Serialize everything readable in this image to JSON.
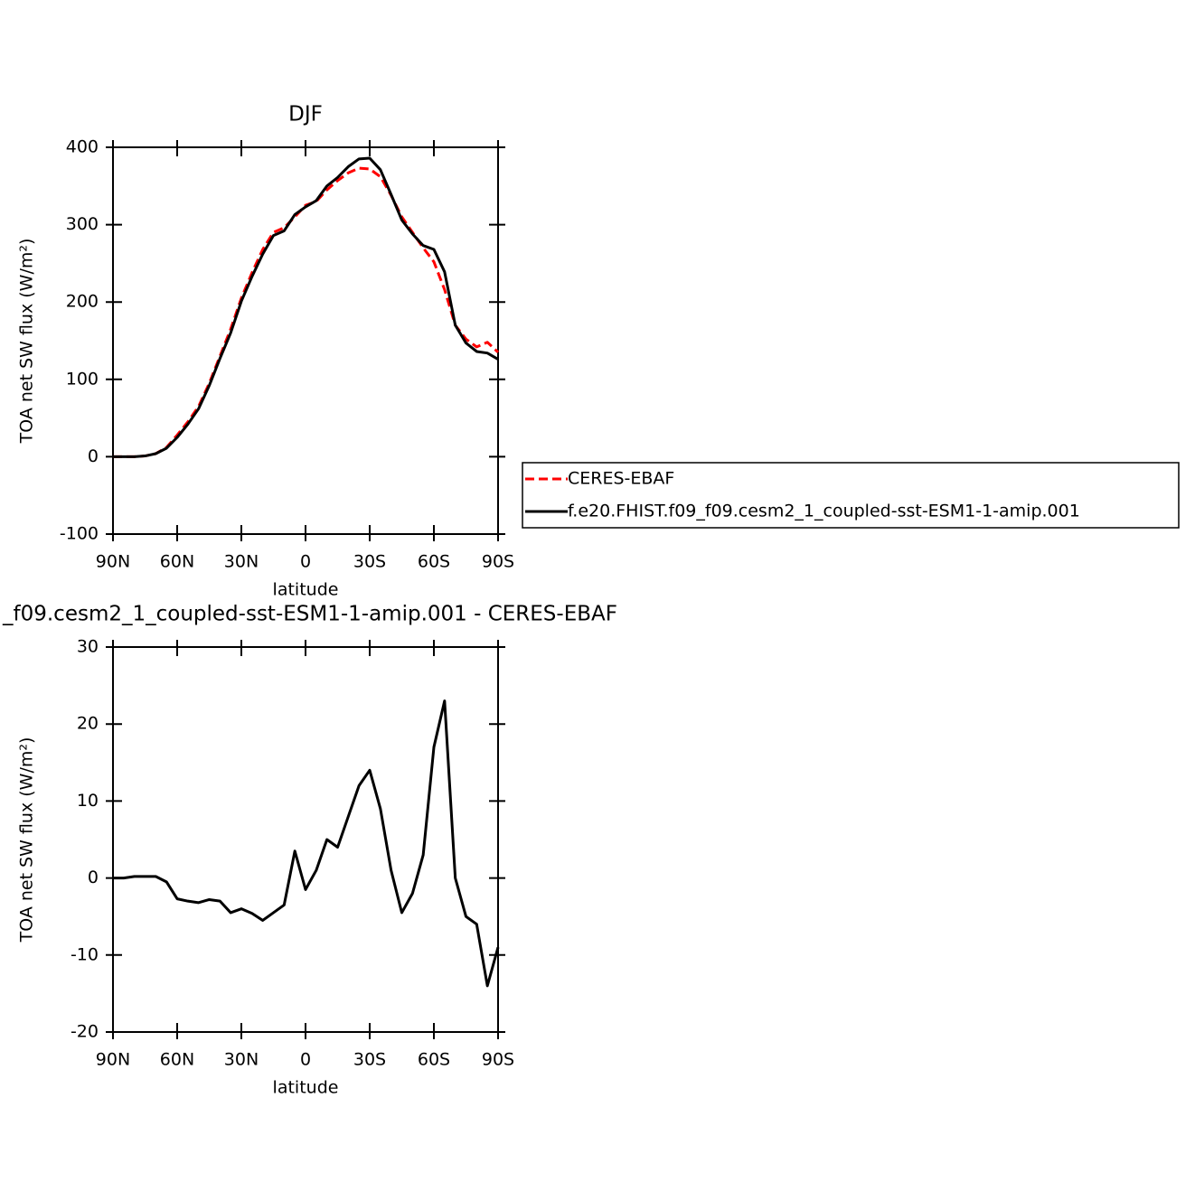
{
  "chart_data": [
    {
      "type": "line",
      "title": "DJF",
      "xlabel": "latitude",
      "ylabel": "TOA net SW flux (W/m²)",
      "x": [
        90,
        85,
        80,
        75,
        70,
        65,
        60,
        55,
        50,
        45,
        40,
        35,
        30,
        25,
        20,
        15,
        10,
        5,
        0,
        -5,
        -10,
        -15,
        -20,
        -25,
        -30,
        -35,
        -40,
        -45,
        -50,
        -55,
        -60,
        -65,
        -70,
        -75,
        -80,
        -85,
        -90
      ],
      "xlim": [
        90,
        -90
      ],
      "xticks": [
        {
          "value": 90,
          "label": "90N"
        },
        {
          "value": 60,
          "label": "60N"
        },
        {
          "value": 30,
          "label": "30N"
        },
        0,
        {
          "value": -30,
          "label": "30S"
        },
        {
          "value": -60,
          "label": "60S"
        },
        {
          "value": -90,
          "label": "90S"
        }
      ],
      "ylim": [
        -100,
        400
      ],
      "yticks": [
        -100,
        0,
        100,
        200,
        300,
        400
      ],
      "legend": "outside-right",
      "series": [
        {
          "name": "CERES-EBAF",
          "color": "#ff0000",
          "line_style": "dashed",
          "values": [
            0,
            0,
            0,
            1,
            4,
            12,
            28,
            45,
            65,
            95,
            130,
            165,
            205,
            238,
            268,
            290,
            296,
            310,
            325,
            330,
            345,
            357,
            367,
            373,
            372,
            362,
            338,
            310,
            290,
            270,
            252,
            216,
            170,
            152,
            142,
            148,
            135
          ]
        },
        {
          "name": "f.e20.FHIST.f09_f09.cesm2_1_coupled-sst-ESM1-1-amip.001",
          "color": "#000000",
          "line_style": "solid",
          "values": [
            0,
            0,
            0,
            1,
            4,
            11,
            25,
            42,
            62,
            92,
            127,
            160,
            201,
            233,
            262,
            286,
            292,
            313,
            323,
            331,
            350,
            361,
            375,
            385,
            386,
            371,
            339,
            306,
            288,
            273,
            268,
            239,
            170,
            147,
            136,
            134,
            126
          ]
        }
      ]
    },
    {
      "type": "line",
      "title": "_f09.cesm2_1_coupled-sst-ESM1-1-amip.001 - CERES-EBAF",
      "xlabel": "latitude",
      "ylabel": "TOA net SW flux (W/m²)",
      "x": [
        90,
        85,
        80,
        75,
        70,
        65,
        60,
        55,
        50,
        45,
        40,
        35,
        30,
        25,
        20,
        15,
        10,
        5,
        0,
        -5,
        -10,
        -15,
        -20,
        -25,
        -30,
        -35,
        -40,
        -45,
        -50,
        -55,
        -60,
        -65,
        -70,
        -75,
        -80,
        -85,
        -90
      ],
      "xlim": [
        90,
        -90
      ],
      "xticks": [
        {
          "value": 90,
          "label": "90N"
        },
        {
          "value": 60,
          "label": "60N"
        },
        {
          "value": 30,
          "label": "30N"
        },
        0,
        {
          "value": -30,
          "label": "30S"
        },
        {
          "value": -60,
          "label": "60S"
        },
        {
          "value": -90,
          "label": "90S"
        }
      ],
      "ylim": [
        -20,
        30
      ],
      "yticks": [
        -20,
        -10,
        0,
        10,
        20,
        30
      ],
      "series": [
        {
          "color": "#000000",
          "line_style": "solid",
          "values": [
            0,
            0,
            0.2,
            0.2,
            0.2,
            -0.5,
            -2.7,
            -3,
            -3.2,
            -2.8,
            -3,
            -4.5,
            -4,
            -4.6,
            -5.5,
            -4.5,
            -3.5,
            3.5,
            -1.5,
            1,
            5,
            4,
            8,
            12,
            14,
            9,
            1,
            -4.5,
            -2,
            3,
            17,
            23,
            0,
            -5,
            -6,
            -14,
            -9
          ]
        }
      ]
    }
  ]
}
